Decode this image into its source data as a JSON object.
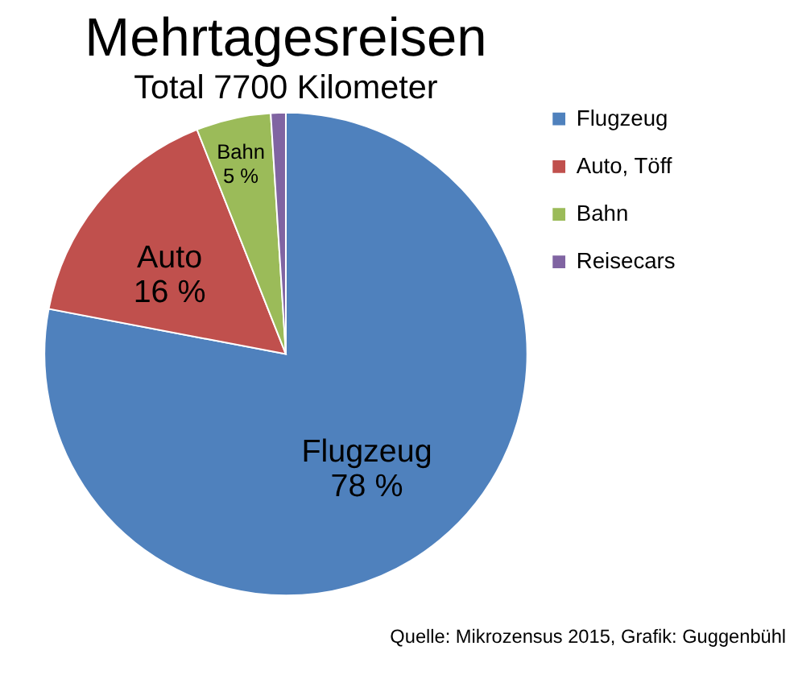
{
  "chart_data": {
    "type": "pie",
    "title": "Mehrtagesreisen",
    "subtitle": "Total 7700 Kilometer",
    "categories": [
      "Flugzeug",
      "Auto, Töff",
      "Bahn",
      "Reisecars"
    ],
    "values": [
      78,
      16,
      5,
      1
    ],
    "colors": [
      "#4f81bd",
      "#c0504d",
      "#9bbb59",
      "#8064a2"
    ],
    "value_labels": [
      "Flugzeug\n78  %",
      "Auto\n16 %",
      "Bahn\n5 %",
      null
    ],
    "legend": "right",
    "annotations": [
      "Quelle: Mikrozensus 2015, Grafik: Guggenbühl"
    ]
  }
}
